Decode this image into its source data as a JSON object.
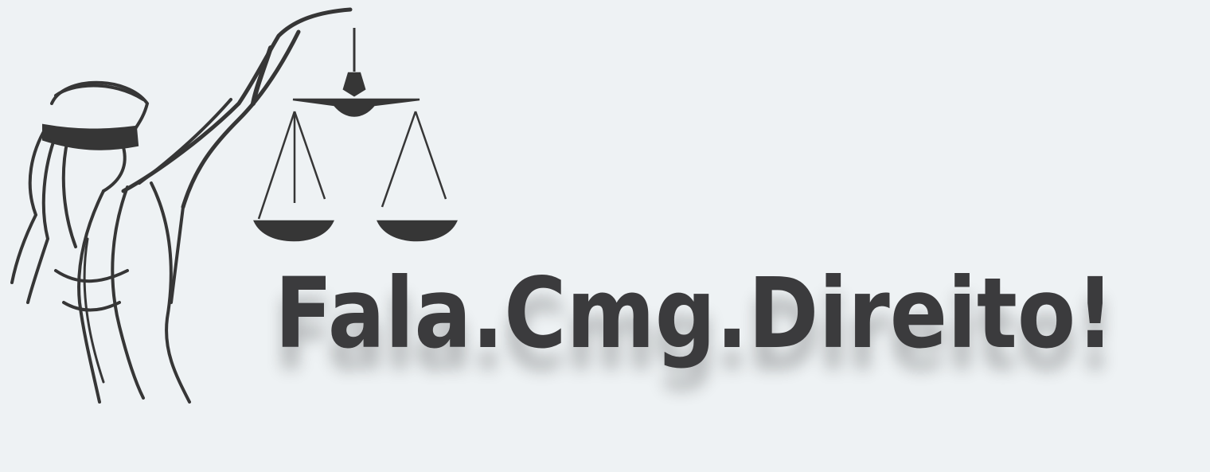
{
  "logo": {
    "text": "Fala.Cmg.Direito!"
  }
}
